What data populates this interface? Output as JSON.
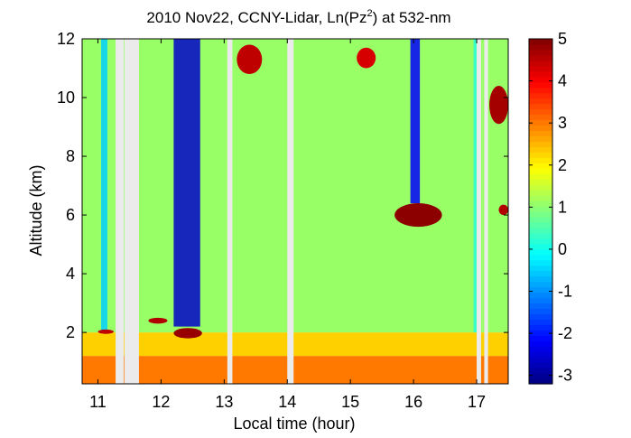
{
  "chart_data": {
    "type": "heatmap",
    "title_prefix": "2010 Nov22, CCNY-Lidar, Ln(Pz",
    "title_sup": "2",
    "title_suffix": ") at 532-nm",
    "xlabel": "Local time (hour)",
    "ylabel": "Altitude (km)",
    "xlim": [
      10.75,
      17.5
    ],
    "ylim": [
      0.25,
      12
    ],
    "x_ticks": [
      "11",
      "12",
      "13",
      "14",
      "15",
      "16",
      "17"
    ],
    "x_tick_values": [
      11,
      12,
      13,
      14,
      15,
      16,
      17
    ],
    "y_ticks": [
      "2",
      "4",
      "6",
      "8",
      "10",
      "12"
    ],
    "y_tick_values": [
      2,
      4,
      6,
      8,
      10,
      12
    ],
    "colorbar": {
      "range": [
        -3.2,
        5
      ],
      "ticks": [
        "-3",
        "-2",
        "-1",
        "0",
        "1",
        "2",
        "3",
        "4",
        "5"
      ],
      "tick_values": [
        -3,
        -2,
        -1,
        0,
        1,
        2,
        3,
        4,
        5
      ],
      "colormap": "jet"
    },
    "data_gaps_hours": [
      [
        11.28,
        11.41
      ],
      [
        11.42,
        11.65
      ],
      [
        13.05,
        13.13
      ],
      [
        14.0,
        14.1
      ],
      [
        17.0,
        17.07
      ],
      [
        17.12,
        17.18
      ]
    ],
    "layers": [
      {
        "name": "boundary layer",
        "x": [
          10.75,
          17.5
        ],
        "y": [
          0.25,
          1.2
        ],
        "value": 3.0
      },
      {
        "name": "transition zone",
        "x": [
          10.75,
          17.5
        ],
        "y": [
          1.2,
          2.0
        ],
        "value": 2.3
      },
      {
        "name": "free troposphere",
        "x": [
          10.75,
          17.5
        ],
        "y": [
          2.0,
          12.0
        ],
        "value": 1.1
      }
    ],
    "features": [
      {
        "name": "cloud near 2 km",
        "x": [
          11.0,
          11.25
        ],
        "y": [
          1.95,
          2.1
        ],
        "value": 4.5
      },
      {
        "name": "cloud near 2 km",
        "x": [
          12.2,
          12.65
        ],
        "y": [
          1.8,
          2.15
        ],
        "value": 4.8
      },
      {
        "name": "cloud near 2.4 km",
        "x": [
          11.8,
          12.1
        ],
        "y": [
          2.3,
          2.5
        ],
        "value": 4.6
      },
      {
        "name": "cirrus",
        "x": [
          13.2,
          13.6
        ],
        "y": [
          10.8,
          11.8
        ],
        "value": 4.5
      },
      {
        "name": "cirrus",
        "x": [
          15.1,
          15.4
        ],
        "y": [
          11.0,
          11.7
        ],
        "value": 4.3
      },
      {
        "name": "cloud near 6 km",
        "x": [
          15.7,
          16.45
        ],
        "y": [
          5.6,
          6.4
        ],
        "value": 4.9
      },
      {
        "name": "cirrus",
        "x": [
          17.2,
          17.5
        ],
        "y": [
          9.1,
          10.4
        ],
        "value": 4.7
      },
      {
        "name": "cloud near 6 km",
        "x": [
          17.35,
          17.5
        ],
        "y": [
          6.0,
          6.35
        ],
        "value": 4.6
      }
    ],
    "attenuated_columns": [
      {
        "x": [
          11.05,
          11.15
        ],
        "y": [
          2.0,
          12.0
        ],
        "value": -0.5
      },
      {
        "x": [
          12.2,
          12.62
        ],
        "y": [
          2.2,
          12.0
        ],
        "value": -2.6
      },
      {
        "x": [
          15.95,
          16.1
        ],
        "y": [
          6.4,
          12.0
        ],
        "value": -2.2
      },
      {
        "x": [
          16.95,
          17.0
        ],
        "y": [
          2.0,
          12.0
        ],
        "value": 0.2
      }
    ]
  }
}
